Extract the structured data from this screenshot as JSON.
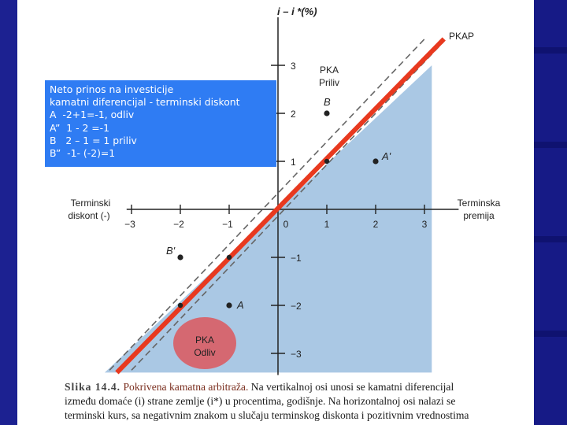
{
  "info_box": {
    "lines": [
      "Neto prinos na investicije",
      "kamatni diferencijal - terminski diskont",
      "A  -2+1=-1, odliv",
      "A”  1 - 2 =-1",
      "B   2 – 1 = 1 priliv",
      "B”  -1- (-2)=1"
    ]
  },
  "axes": {
    "y_label": "i – i *(%)",
    "x_left_label": [
      "Terminski",
      "diskont (-)"
    ],
    "x_right_label": [
      "Terminska",
      "premija"
    ],
    "x_ticks": [
      "-3",
      "-2",
      "-1",
      "0",
      "1",
      "2",
      "3"
    ],
    "y_ticks": [
      "3",
      "2",
      "1",
      "-1",
      "-2",
      "-3"
    ]
  },
  "lines": {
    "pkap_label": "PKAP"
  },
  "regions": {
    "pka_priliv": [
      "PKA",
      "Priliv"
    ],
    "pka_odliv": [
      "PKA",
      "Odliv"
    ],
    "shade_color": "#aac8e4",
    "odliv_color": "#d95f67"
  },
  "points": [
    {
      "label": "B",
      "x": 1,
      "y": 2
    },
    {
      "label": "A'",
      "x": 2,
      "y": 1
    },
    {
      "label": "B'",
      "x": -2,
      "y": -1
    },
    {
      "label": "A",
      "x": -1,
      "y": -2
    }
  ],
  "hidden_points": [
    {
      "x": 1,
      "y": 1
    },
    {
      "x": -1,
      "y": -1
    },
    {
      "x": -2,
      "y": -2
    }
  ],
  "colors": {
    "red_line": "#e8391f",
    "dashed_line": "#666666"
  },
  "caption": {
    "label": "Slika 14.4.",
    "title": "Pokrivena kamatna arbitraža.",
    "line1_rest": " Na vertikalnoj osi unosi se kamatni diferencijal",
    "line2": "između domaće (i) strane zemlje (i*) u procentima, godišnje. Na horizontalnoj osi nalazi se",
    "line3": "terminski kurs, sa negativnim znakom u slučaju terminskog diskonta i pozitivnim vrednostima"
  }
}
